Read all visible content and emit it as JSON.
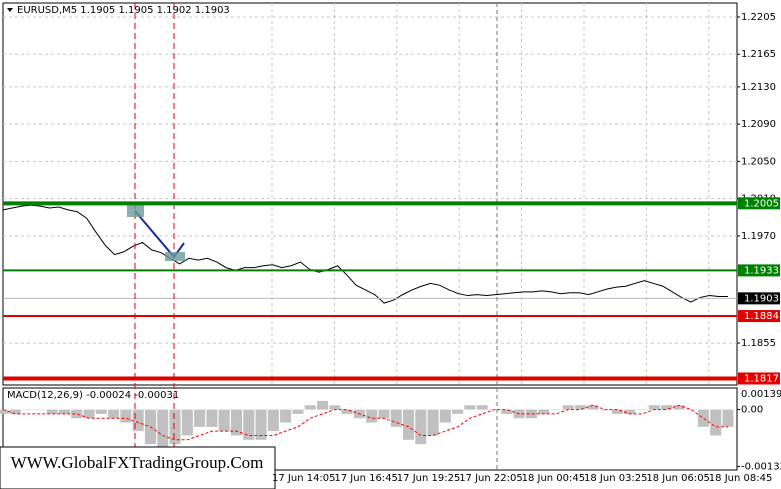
{
  "watermark": "WWW.GlobalFXTradingGroup.Com",
  "chart_data": [
    {
      "type": "line",
      "title": "EURUSD,M5  1.1905 1.1905 1.1902 1.1903",
      "ylim": [
        1.181,
        1.222
      ],
      "yticks": [
        1.2205,
        1.2165,
        {
          "value": 1.213,
          "label": "1.2130"
        },
        {
          "value": 1.209,
          "label": "1.2090"
        },
        {
          "value": 1.205,
          "label": "1.2050"
        },
        {
          "value": 1.201,
          "label": "1.2010"
        },
        {
          "value": 1.197,
          "label": "1.1970"
        },
        1.1855
      ],
      "grid": true,
      "x_labels": [
        "17 Jun 14:05",
        "17 Jun 16:45",
        "17 Jun 19:25",
        "17 Jun 22:05",
        "18 Jun 00:45",
        "18 Jun 03:25",
        "18 Jun 06:05",
        "18 Jun 08:45"
      ],
      "series": [
        {
          "color": "#000000",
          "values": [
            1.1998,
            1.2,
            1.2002,
            1.2003,
            1.2002,
            1.2,
            1.2001,
            1.1998,
            1.1996,
            1.1989,
            1.1974,
            1.196,
            1.195,
            1.1953,
            1.1959,
            1.1963,
            1.1955,
            1.1952,
            1.1946,
            1.194,
            1.1946,
            1.1944,
            1.1946,
            1.1942,
            1.1936,
            1.1933,
            1.1936,
            1.1936,
            1.1938,
            1.1939,
            1.1936,
            1.1938,
            1.1942,
            1.1934,
            1.1931,
            1.1934,
            1.1938,
            1.1928,
            1.1917,
            1.1912,
            1.1907,
            1.1898,
            1.1901,
            1.1907,
            1.1912,
            1.1916,
            1.1919,
            1.1917,
            1.1912,
            1.1908,
            1.1906,
            1.1907,
            1.1906,
            1.1907,
            1.1908,
            1.1909,
            1.191,
            1.191,
            1.1911,
            1.191,
            1.1908,
            1.1909,
            1.1909,
            1.1907,
            1.191,
            1.1913,
            1.1915,
            1.1916,
            1.1919,
            1.1922,
            1.1919,
            1.1916,
            1.191,
            1.1904,
            1.1899,
            1.1904,
            1.1906,
            1.1905,
            1.1905
          ]
        }
      ],
      "levels": [
        {
          "value": 1.2005,
          "color": "#008000",
          "width": 4
        },
        {
          "value": 1.1933,
          "color": "#008000",
          "width": 2
        },
        {
          "value": 1.1884,
          "color": "#e00000",
          "width": 2
        },
        {
          "value": 1.1817,
          "color": "#e00000",
          "width": 4
        }
      ],
      "current_price": 1.1903
    },
    {
      "type": "macd",
      "title": "MACD(12,26,9) -0.00024 -0.00031",
      "ylim": [
        -0.0014,
        0.0005
      ],
      "yticks": [
        {
          "value": 0,
          "label": "0.00"
        },
        -0.00132
      ],
      "scale_max_label": "0.00139",
      "series": [
        {
          "color": "#c0c0c0",
          "values": [
            -0.0001,
            -0.0001,
            0,
            0,
            -0.0001,
            -0.0001,
            -0.0002,
            -0.0002,
            -0.0001,
            -0.0002,
            -0.0003,
            -0.0005,
            -0.0008,
            -0.0009,
            -0.0008,
            -0.0006,
            -0.0004,
            -0.0004,
            -0.0005,
            -0.0006,
            -0.0007,
            -0.0007,
            -0.0005,
            -0.0003,
            -0.0001,
            0.0001,
            0.0002,
            0.0001,
            -0.0001,
            -0.0002,
            -0.0003,
            -0.0002,
            -0.0004,
            -0.0007,
            -0.0008,
            -0.0006,
            -0.0003,
            -0.0001,
            0.0001,
            0.0001,
            0,
            -0.0001,
            -0.0002,
            -0.0002,
            -0.0001,
            0,
            0.0001,
            0.0001,
            0.0001,
            0,
            -0.0001,
            -0.0001,
            0,
            0.0001,
            0.0001,
            0.0001,
            0,
            -0.0004,
            -0.0006,
            -0.0004
          ]
        },
        {
          "color": "#ff0000",
          "values": [
            0,
            -0.0001,
            -0.0001,
            -0.0001,
            -0.0001,
            -0.0001,
            -0.0001,
            -0.0002,
            -0.0002,
            -0.0002,
            -0.0002,
            -0.0003,
            -0.0004,
            -0.0006,
            -0.0007,
            -0.0007,
            -0.0006,
            -0.0005,
            -0.0005,
            -0.0005,
            -0.0006,
            -0.0006,
            -0.0006,
            -0.0005,
            -0.0004,
            -0.0002,
            -0.0001,
            0,
            0,
            -0.0001,
            -0.0002,
            -0.0002,
            -0.0003,
            -0.0004,
            -0.0006,
            -0.0006,
            -0.0005,
            -0.0004,
            -0.0002,
            -0.0001,
            0,
            0,
            -0.0001,
            -0.0001,
            -0.0001,
            -0.0001,
            0,
            0,
            0.0001,
            0,
            0,
            -0.0001,
            -0.0001,
            0,
            0,
            0.0001,
            0,
            -0.0002,
            -0.0004,
            -0.0004
          ]
        }
      ]
    }
  ]
}
